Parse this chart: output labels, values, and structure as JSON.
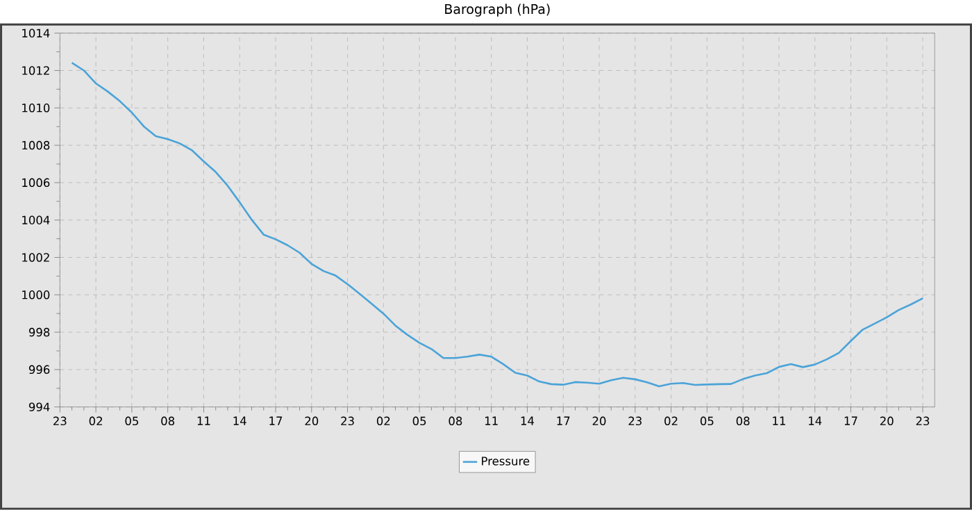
{
  "chart_data": {
    "type": "line",
    "title": "Barograph (hPa)",
    "categories": [
      "23",
      null,
      null,
      "02",
      null,
      null,
      "05",
      null,
      null,
      "08",
      null,
      null,
      "11",
      null,
      null,
      "14",
      null,
      null,
      "17",
      null,
      null,
      "20",
      null,
      null,
      "23",
      null,
      null,
      "02",
      null,
      null,
      "05",
      null,
      null,
      "08",
      null,
      null,
      "11",
      null,
      null,
      "14",
      null,
      null,
      "17",
      null,
      null,
      "20",
      null,
      null,
      "23",
      null,
      null,
      "02",
      null,
      null,
      "05",
      null,
      null,
      "08",
      null,
      null,
      "11",
      null,
      null,
      "14",
      null,
      null,
      "17",
      null,
      null,
      "20",
      null,
      null,
      "23"
    ],
    "ylim": [
      994,
      1014
    ],
    "yticks": [
      994,
      996,
      998,
      1000,
      1002,
      1004,
      1006,
      1008,
      1010,
      1012,
      1014
    ],
    "grid": true,
    "legend": "bottom",
    "marker": "none",
    "line_style": "solid",
    "series": [
      {
        "name": "Pressure",
        "color": "#4aa3d8",
        "values": [
          null,
          1012.41,
          1012.0,
          1011.31,
          1010.87,
          1010.36,
          1009.75,
          1009.01,
          1008.49,
          1008.33,
          1008.1,
          1007.74,
          1007.14,
          1006.57,
          1005.83,
          1004.95,
          1004.02,
          1003.22,
          1002.97,
          1002.65,
          1002.25,
          1001.65,
          1001.27,
          1001.03,
          1000.57,
          1000.06,
          999.53,
          998.99,
          998.35,
          997.86,
          997.43,
          997.1,
          996.62,
          996.62,
          996.69,
          996.8,
          996.69,
          996.29,
          995.83,
          995.68,
          995.36,
          995.22,
          995.19,
          995.33,
          995.3,
          995.24,
          995.43,
          995.56,
          995.48,
          995.32,
          995.1,
          995.24,
          995.28,
          995.18,
          995.2,
          995.22,
          995.23,
          995.49,
          995.68,
          995.81,
          996.14,
          996.29,
          996.13,
          996.27,
          996.55,
          996.89,
          997.53,
          998.14,
          998.46,
          998.8,
          999.19,
          999.48,
          999.81
        ]
      }
    ]
  }
}
